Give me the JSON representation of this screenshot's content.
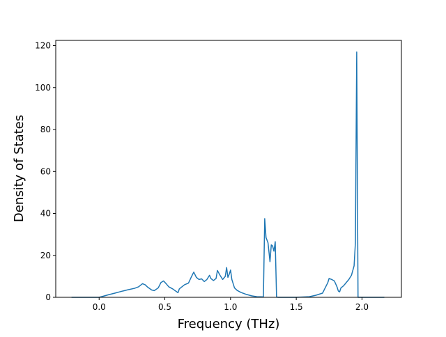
{
  "chart_data": {
    "type": "line",
    "title": "",
    "xlabel": "Frequency (THz)",
    "ylabel": "Density of States",
    "xlim": [
      -0.33,
      2.3
    ],
    "ylim": [
      0,
      122.5
    ],
    "xticks": [
      0.0,
      0.5,
      1.0,
      1.5,
      2.0
    ],
    "xtick_labels": [
      "0.0",
      "0.5",
      "1.0",
      "1.5",
      "2.0"
    ],
    "yticks": [
      0,
      20,
      40,
      60,
      80,
      100,
      120
    ],
    "ytick_labels": [
      "0",
      "20",
      "40",
      "60",
      "80",
      "100",
      "120"
    ],
    "grid": false,
    "legend": "none",
    "series": [
      {
        "color": "#1f77b4",
        "x": [
          -0.21,
          0.0,
          0.03,
          0.07,
          0.12,
          0.18,
          0.22,
          0.27,
          0.3,
          0.33,
          0.35,
          0.37,
          0.4,
          0.42,
          0.45,
          0.47,
          0.49,
          0.51,
          0.53,
          0.56,
          0.6,
          0.61,
          0.63,
          0.65,
          0.68,
          0.7,
          0.72,
          0.74,
          0.76,
          0.78,
          0.8,
          0.82,
          0.84,
          0.85,
          0.87,
          0.89,
          0.9,
          0.92,
          0.94,
          0.96,
          0.97,
          0.98,
          0.99,
          1.0,
          1.01,
          1.02,
          1.03,
          1.05,
          1.08,
          1.12,
          1.16,
          1.2,
          1.25,
          1.26,
          1.27,
          1.285,
          1.3,
          1.31,
          1.32,
          1.33,
          1.34,
          1.35,
          1.36,
          1.4,
          1.5,
          1.6,
          1.65,
          1.7,
          1.72,
          1.74,
          1.75,
          1.77,
          1.79,
          1.81,
          1.82,
          1.83,
          1.84,
          1.86,
          1.88,
          1.9,
          1.92,
          1.94,
          1.95,
          1.96,
          1.97,
          1.98,
          2.1,
          2.17
        ],
        "y": [
          0,
          0,
          0.5,
          1.2,
          2.0,
          3.0,
          3.6,
          4.3,
          5.0,
          6.5,
          6.0,
          4.8,
          3.5,
          3.2,
          4.5,
          7.0,
          7.8,
          6.5,
          5.0,
          4.0,
          2.2,
          4.0,
          5.0,
          6.0,
          6.8,
          9.5,
          12.0,
          9.5,
          8.5,
          8.8,
          7.5,
          8.5,
          10.5,
          9.0,
          8.0,
          9.0,
          12.8,
          10.5,
          8.5,
          10.0,
          14.2,
          9.5,
          11.0,
          13.0,
          8.5,
          6.5,
          4.5,
          3.3,
          2.3,
          1.4,
          0.7,
          0.3,
          0.2,
          37.5,
          28.5,
          26.0,
          17.0,
          25.0,
          24.5,
          22.0,
          26.5,
          0.3,
          0,
          0,
          0,
          0.3,
          1.0,
          2.0,
          4.5,
          7.0,
          9.0,
          8.5,
          7.8,
          5.0,
          3.0,
          2.6,
          4.5,
          5.5,
          7.0,
          8.5,
          10.5,
          15.0,
          26.0,
          117.0,
          0,
          0,
          0,
          0
        ]
      }
    ]
  }
}
